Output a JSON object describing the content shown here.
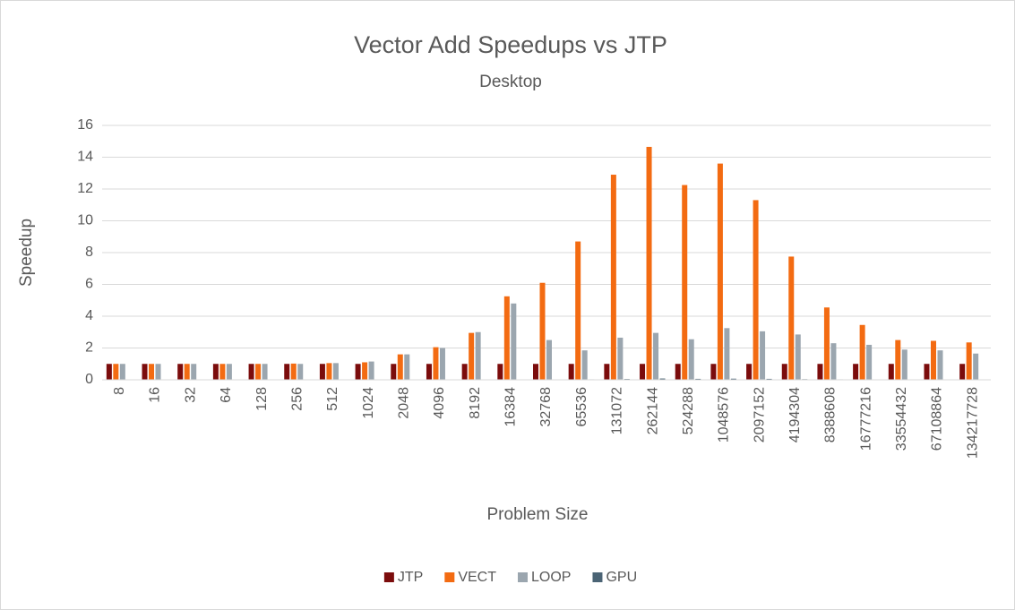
{
  "chart_data": {
    "type": "bar",
    "title": "Vector Add Speedups vs JTP",
    "subtitle": "Desktop",
    "x_label": "Problem Size",
    "y_label": "Speedup",
    "categories": [
      "8",
      "16",
      "32",
      "64",
      "128",
      "256",
      "512",
      "1024",
      "2048",
      "4096",
      "8192",
      "16384",
      "32768",
      "65536",
      "131072",
      "262144",
      "524288",
      "1048576",
      "2097152",
      "4194304",
      "8388608",
      "16777216",
      "33554432",
      "67108864",
      "134217728"
    ],
    "series": [
      {
        "name": "JTP",
        "color": "#7b0c0c",
        "values": [
          1,
          1,
          1,
          1,
          1,
          1,
          1,
          1,
          1,
          1,
          1,
          1,
          1,
          1,
          1,
          1,
          1,
          1,
          1,
          1,
          1,
          1,
          1,
          1,
          1
        ]
      },
      {
        "name": "VECT",
        "color": "#f36b12",
        "values": [
          1.0,
          1.0,
          1.0,
          1.0,
          1.0,
          1.02,
          1.05,
          1.1,
          1.6,
          2.05,
          2.95,
          5.25,
          6.1,
          8.7,
          12.9,
          14.65,
          12.25,
          13.6,
          11.3,
          7.75,
          4.55,
          3.45,
          2.5,
          2.45,
          2.35
        ]
      },
      {
        "name": "LOOP",
        "color": "#9ba6af",
        "values": [
          1.0,
          1.0,
          1.0,
          1.0,
          1.0,
          1.0,
          1.05,
          1.15,
          1.6,
          2.0,
          3.0,
          4.8,
          2.5,
          1.85,
          2.65,
          2.95,
          2.55,
          3.25,
          3.05,
          2.85,
          2.3,
          2.2,
          1.9,
          1.85,
          1.65
        ]
      },
      {
        "name": "GPU",
        "color": "#4b6475",
        "values": [
          0,
          0,
          0,
          0,
          0,
          0,
          0,
          0,
          0,
          0,
          0,
          0.02,
          0.02,
          0.03,
          0.05,
          0.08,
          0.06,
          0.07,
          0.06,
          0.04,
          0.03,
          0.02,
          0.02,
          0.02,
          0.02
        ]
      }
    ],
    "ylim": [
      0,
      16
    ],
    "yticks": [
      0,
      2,
      4,
      6,
      8,
      10,
      12,
      14,
      16
    ],
    "grid": true,
    "legend": "bottom"
  }
}
